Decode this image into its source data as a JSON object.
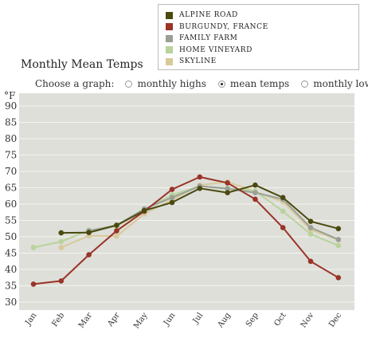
{
  "legend": [
    {
      "label": "ALPINE ROAD",
      "color": "#4a4a10"
    },
    {
      "label": "BURGUNDY, FRANCE",
      "color": "#9a3328"
    },
    {
      "label": "FAMILY FARM",
      "color": "#9aa096"
    },
    {
      "label": "HOME VINEYARD",
      "color": "#b9d39a"
    },
    {
      "label": "SKYLINE",
      "color": "#d8c99a"
    }
  ],
  "title": "Monthly Mean Temps",
  "chooser": {
    "prompt": "Choose a graph:",
    "options": [
      {
        "label": "monthly highs",
        "selected": false
      },
      {
        "label": "mean temps",
        "selected": true
      },
      {
        "label": "monthly lows",
        "selected": false
      }
    ]
  },
  "chart_data": {
    "type": "line",
    "title": "Monthly Mean Temps",
    "ylabel": "°F",
    "xlabel": "",
    "ylim": [
      30,
      90
    ],
    "yticks": [
      30,
      35,
      40,
      45,
      50,
      55,
      60,
      65,
      70,
      75,
      80,
      85,
      90
    ],
    "categories": [
      "Jan",
      "Feb",
      "Mar",
      "Apr",
      "May",
      "Jun",
      "Jul",
      "Aug",
      "Sep",
      "Oct",
      "Nov",
      "Dec"
    ],
    "grid": true,
    "legend_position": "top-right",
    "background": "#dedfd9",
    "series": [
      {
        "name": "SKYLINE",
        "color": "#d8c99a",
        "values": [
          null,
          46.7,
          50.3,
          50.2,
          57.0,
          61.3,
          65.8,
          66.8,
          63.8,
          60.7,
          52.2,
          49.0
        ]
      },
      {
        "name": "HOME VINEYARD",
        "color": "#b9d39a",
        "values": [
          46.7,
          48.5,
          52.0,
          53.2,
          58.3,
          62.8,
          65.5,
          64.8,
          64.0,
          57.8,
          50.8,
          47.3
        ]
      },
      {
        "name": "FAMILY FARM",
        "color": "#9aa096",
        "values": [
          null,
          null,
          51.8,
          53.5,
          58.5,
          62.0,
          65.5,
          64.7,
          63.5,
          61.5,
          52.8,
          49.2
        ]
      },
      {
        "name": "BURGUNDY, FRANCE",
        "color": "#9a3328",
        "values": [
          35.5,
          36.5,
          44.5,
          51.8,
          57.8,
          64.5,
          68.3,
          66.5,
          61.5,
          52.8,
          42.5,
          37.5
        ]
      },
      {
        "name": "ALPINE ROAD",
        "color": "#4a4a10",
        "values": [
          null,
          51.2,
          51.3,
          53.5,
          58.0,
          60.5,
          64.8,
          63.5,
          65.8,
          62.0,
          54.7,
          52.5
        ]
      }
    ]
  }
}
